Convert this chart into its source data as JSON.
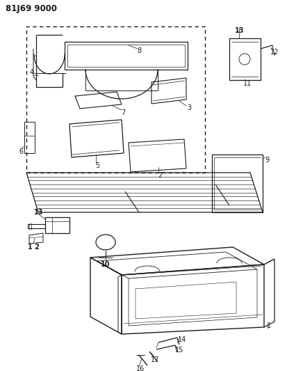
{
  "title": "81J69 9000",
  "bg_color": "#ffffff",
  "line_color": "#1a1a1a",
  "fig_width": 4.14,
  "fig_height": 5.33,
  "fig_dpi": 100
}
